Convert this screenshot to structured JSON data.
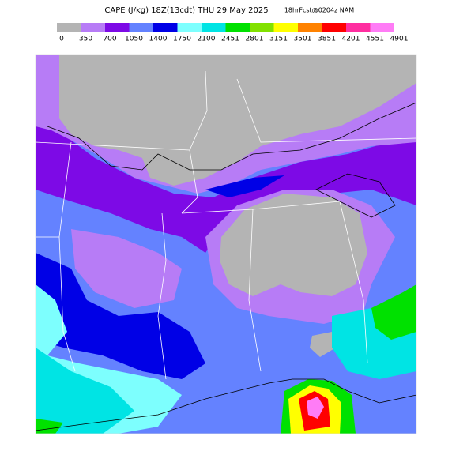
{
  "header": {
    "title": "CAPE (J/kg) 18Z(13cdt) THU 29 May 2025",
    "forecast": "18hrFcst@0204z NAM"
  },
  "legend": {
    "bins": [
      0,
      350,
      700,
      1050,
      1400,
      1750,
      2100,
      2451,
      2801,
      3151,
      3501,
      3851,
      4201,
      4551,
      4901
    ],
    "colors": [
      "#b4b4b4",
      "#b77cf6",
      "#7d0ae6",
      "#6482ff",
      "#0000e6",
      "#7dfffe",
      "#00e4e4",
      "#00e100",
      "#82e100",
      "#ffff00",
      "#ff8200",
      "#ff0000",
      "#ff2ea0",
      "#ff7cf6"
    ]
  }
}
